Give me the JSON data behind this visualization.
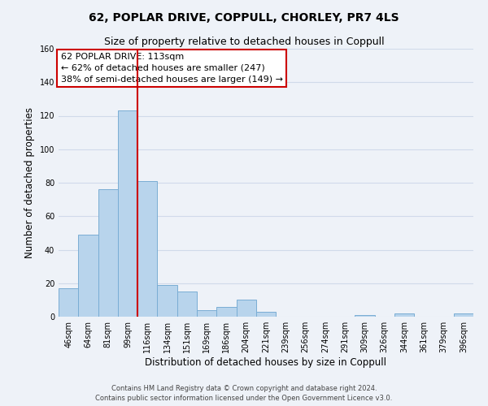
{
  "title": "62, POPLAR DRIVE, COPPULL, CHORLEY, PR7 4LS",
  "subtitle": "Size of property relative to detached houses in Coppull",
  "xlabel": "Distribution of detached houses by size in Coppull",
  "ylabel": "Number of detached properties",
  "bar_labels": [
    "46sqm",
    "64sqm",
    "81sqm",
    "99sqm",
    "116sqm",
    "134sqm",
    "151sqm",
    "169sqm",
    "186sqm",
    "204sqm",
    "221sqm",
    "239sqm",
    "256sqm",
    "274sqm",
    "291sqm",
    "309sqm",
    "326sqm",
    "344sqm",
    "361sqm",
    "379sqm",
    "396sqm"
  ],
  "bar_values": [
    17,
    49,
    76,
    123,
    81,
    19,
    15,
    4,
    6,
    10,
    3,
    0,
    0,
    0,
    0,
    1,
    0,
    2,
    0,
    0,
    2
  ],
  "bar_color": "#b8d4ec",
  "bar_edge_color": "#7aadd4",
  "vline_color": "#cc0000",
  "vline_x": 3.5,
  "annotation_title": "62 POPLAR DRIVE: 113sqm",
  "annotation_line1": "← 62% of detached houses are smaller (247)",
  "annotation_line2": "38% of semi-detached houses are larger (149) →",
  "annotation_box_color": "#ffffff",
  "annotation_box_edge": "#cc0000",
  "ylim": [
    0,
    160
  ],
  "yticks": [
    0,
    20,
    40,
    60,
    80,
    100,
    120,
    140,
    160
  ],
  "footer_line1": "Contains HM Land Registry data © Crown copyright and database right 2024.",
  "footer_line2": "Contains public sector information licensed under the Open Government Licence v3.0.",
  "background_color": "#eef2f8",
  "grid_color": "#d0daea",
  "title_fontsize": 10,
  "subtitle_fontsize": 9,
  "axis_label_fontsize": 8.5,
  "tick_fontsize": 7,
  "annotation_fontsize": 8,
  "footer_fontsize": 6
}
